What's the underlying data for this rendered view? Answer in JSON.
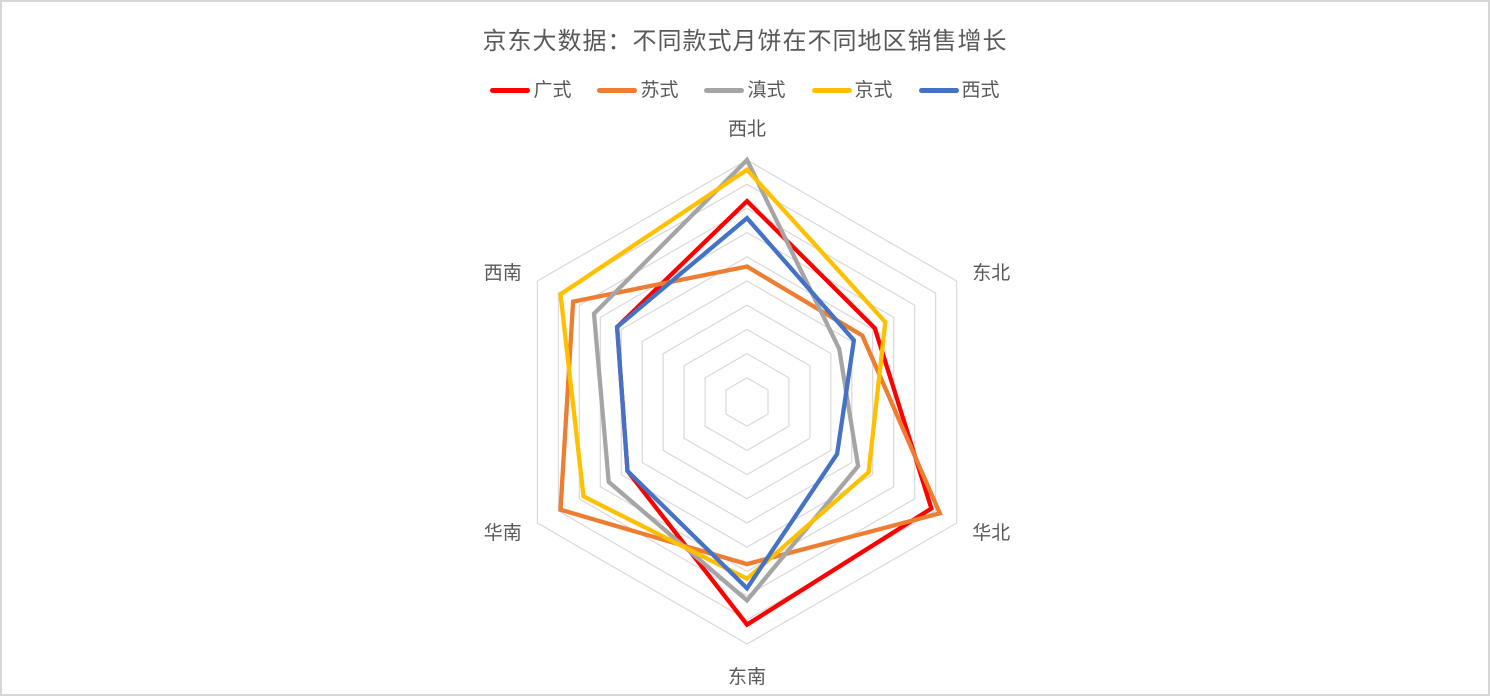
{
  "title": "京东大数据：不同款式月饼在不同地区销售增长",
  "frame": {
    "background": "#FFFFFF",
    "border_color": "#D6D6D6"
  },
  "chart_data": {
    "type": "radar",
    "title": "京东大数据：不同款式月饼在不同地区销售增长",
    "categories": [
      "西北",
      "东北",
      "华北",
      "东南",
      "华南",
      "西南"
    ],
    "series": [
      {
        "name": "广式",
        "color": "#FE0000",
        "values": [
          83,
          61,
          88,
          92,
          57,
          62
        ]
      },
      {
        "name": "苏式",
        "color": "#ED7D31",
        "values": [
          56,
          55,
          92,
          67,
          89,
          83
        ]
      },
      {
        "name": "滇式",
        "color": "#A5A5A5",
        "values": [
          100,
          44,
          53,
          82,
          66,
          73
        ]
      },
      {
        "name": "京式",
        "color": "#FFC000",
        "values": [
          96,
          66,
          58,
          73,
          78,
          89
        ]
      },
      {
        "name": "西式",
        "color": "#4472C4",
        "values": [
          76,
          51,
          43,
          77,
          57,
          62
        ]
      }
    ],
    "max": 100,
    "levels": 10,
    "grid": true,
    "grid_shape": "hexagon",
    "grid_color": "#D9D9D9",
    "text_color": "#595959",
    "legend_position": "top",
    "fill": false
  }
}
